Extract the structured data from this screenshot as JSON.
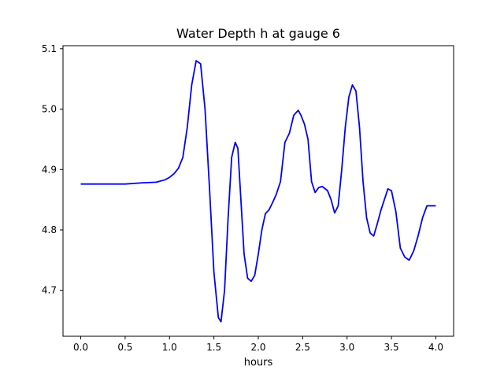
{
  "chart_data": {
    "type": "line",
    "title": "Water Depth h at gauge 6",
    "xlabel": "hours",
    "ylabel": "",
    "xlim": [
      -0.2,
      4.2
    ],
    "ylim": [
      4.624,
      5.105
    ],
    "xticks": [
      0.0,
      0.5,
      1.0,
      1.5,
      2.0,
      2.5,
      3.0,
      3.5,
      4.0
    ],
    "xtick_labels": [
      "0.0",
      "0.5",
      "1.0",
      "1.5",
      "2.0",
      "2.5",
      "3.0",
      "3.5",
      "4.0"
    ],
    "yticks": [
      4.7,
      4.8,
      4.9,
      5.0,
      5.1
    ],
    "ytick_labels": [
      "4.7",
      "4.8",
      "4.9",
      "5.0",
      "5.1"
    ],
    "grid": false,
    "series": [
      {
        "color": "#0000ff",
        "x": [
          0.0,
          0.3,
          0.5,
          0.7,
          0.85,
          0.95,
          1.0,
          1.05,
          1.1,
          1.15,
          1.2,
          1.25,
          1.3,
          1.35,
          1.4,
          1.45,
          1.5,
          1.55,
          1.58,
          1.62,
          1.66,
          1.7,
          1.74,
          1.77,
          1.8,
          1.84,
          1.88,
          1.92,
          1.96,
          2.0,
          2.04,
          2.08,
          2.12,
          2.16,
          2.2,
          2.25,
          2.3,
          2.35,
          2.4,
          2.45,
          2.48,
          2.52,
          2.56,
          2.6,
          2.64,
          2.68,
          2.72,
          2.78,
          2.82,
          2.86,
          2.9,
          2.94,
          2.98,
          3.02,
          3.06,
          3.1,
          3.14,
          3.18,
          3.22,
          3.26,
          3.3,
          3.34,
          3.38,
          3.42,
          3.46,
          3.5,
          3.55,
          3.6,
          3.65,
          3.7,
          3.75,
          3.8,
          3.85,
          3.9,
          3.95,
          4.0
        ],
        "y": [
          4.876,
          4.876,
          4.876,
          4.878,
          4.879,
          4.883,
          4.887,
          4.893,
          4.902,
          4.92,
          4.97,
          5.04,
          5.08,
          5.075,
          5.0,
          4.87,
          4.73,
          4.655,
          4.648,
          4.7,
          4.82,
          4.92,
          4.945,
          4.935,
          4.86,
          4.76,
          4.72,
          4.715,
          4.725,
          4.76,
          4.8,
          4.827,
          4.833,
          4.845,
          4.858,
          4.88,
          4.945,
          4.96,
          4.99,
          4.998,
          4.99,
          4.975,
          4.95,
          4.88,
          4.862,
          4.87,
          4.872,
          4.865,
          4.85,
          4.828,
          4.84,
          4.9,
          4.97,
          5.02,
          5.04,
          5.03,
          4.97,
          4.88,
          4.82,
          4.795,
          4.79,
          4.81,
          4.832,
          4.85,
          4.868,
          4.865,
          4.83,
          4.77,
          4.755,
          4.75,
          4.765,
          4.79,
          4.82,
          4.84,
          4.84,
          4.84
        ]
      }
    ]
  }
}
